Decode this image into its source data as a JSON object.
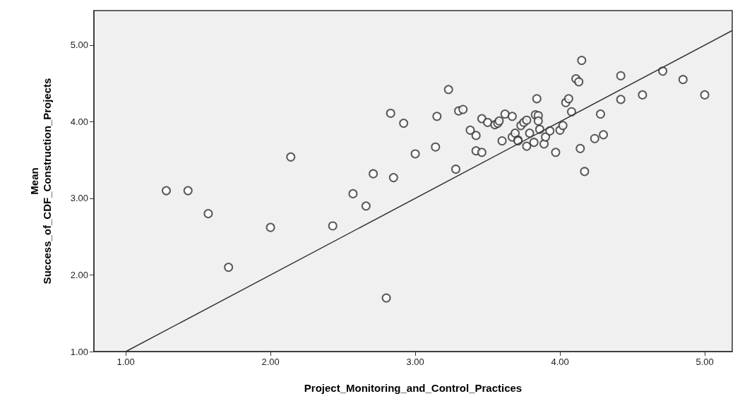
{
  "chart_data": {
    "type": "scatter",
    "xlabel": "Project_Monitoring_and_Control_Practices",
    "ylabel": "Mean\nSuccess_of_CDF_Construction_Projects",
    "xlim": [
      0.78,
      5.19
    ],
    "ylim": [
      1,
      5.45
    ],
    "xticks": [
      {
        "value": 1,
        "label": "1.00"
      },
      {
        "value": 2,
        "label": "2.00"
      },
      {
        "value": 3,
        "label": "3.00"
      },
      {
        "value": 4,
        "label": "4.00"
      },
      {
        "value": 5,
        "label": "5.00"
      }
    ],
    "yticks": [
      {
        "value": 1,
        "label": "1.00"
      },
      {
        "value": 2,
        "label": "2.00"
      },
      {
        "value": 3,
        "label": "3.00"
      },
      {
        "value": 4,
        "label": "4.00"
      },
      {
        "value": 5,
        "label": "5.00"
      }
    ],
    "grid": false,
    "marker": "circle",
    "series": [
      {
        "color": "#333333",
        "x": [
          1.28,
          1.43,
          1.57,
          1.71,
          2.0,
          2.14,
          2.43,
          2.57,
          2.66,
          2.71,
          2.8,
          2.83,
          2.85,
          2.92,
          3.0,
          3.14,
          3.15,
          3.23,
          3.28,
          3.3,
          3.33,
          3.38,
          3.42,
          3.42,
          3.46,
          3.46,
          3.5,
          3.55,
          3.57,
          3.58,
          3.6,
          3.62,
          3.67,
          3.67,
          3.69,
          3.71,
          3.71,
          3.73,
          3.75,
          3.77,
          3.77,
          3.79,
          3.82,
          3.83,
          3.84,
          3.85,
          3.85,
          3.86,
          3.89,
          3.9,
          3.93,
          3.97,
          4.0,
          4.02,
          4.04,
          4.06,
          4.08,
          4.11,
          4.13,
          4.14,
          4.15,
          4.17,
          4.24,
          4.28,
          4.3,
          4.42,
          4.42,
          4.57,
          4.71,
          4.85,
          5.0
        ],
        "values": [
          3.1,
          3.1,
          2.8,
          2.1,
          2.62,
          3.54,
          2.64,
          3.06,
          2.9,
          3.32,
          1.7,
          4.11,
          3.27,
          3.98,
          3.58,
          3.67,
          4.07,
          4.42,
          3.38,
          4.14,
          4.16,
          3.89,
          3.82,
          3.62,
          4.04,
          3.6,
          3.99,
          3.96,
          3.98,
          4.01,
          3.75,
          4.1,
          4.07,
          3.8,
          3.85,
          3.76,
          3.75,
          3.95,
          3.99,
          4.02,
          3.68,
          3.85,
          3.73,
          4.09,
          4.3,
          4.08,
          4.01,
          3.9,
          3.71,
          3.8,
          3.88,
          3.6,
          3.89,
          3.95,
          4.25,
          4.3,
          4.13,
          4.56,
          4.52,
          3.65,
          4.8,
          3.35,
          3.78,
          4.1,
          3.83,
          4.6,
          4.29,
          4.35,
          4.66,
          4.55,
          4.35
        ]
      },
      {
        "type": "line",
        "color": "#333333",
        "marker": "none",
        "x": [
          1.0,
          5.19
        ],
        "values": [
          1.0,
          5.19
        ]
      }
    ]
  }
}
